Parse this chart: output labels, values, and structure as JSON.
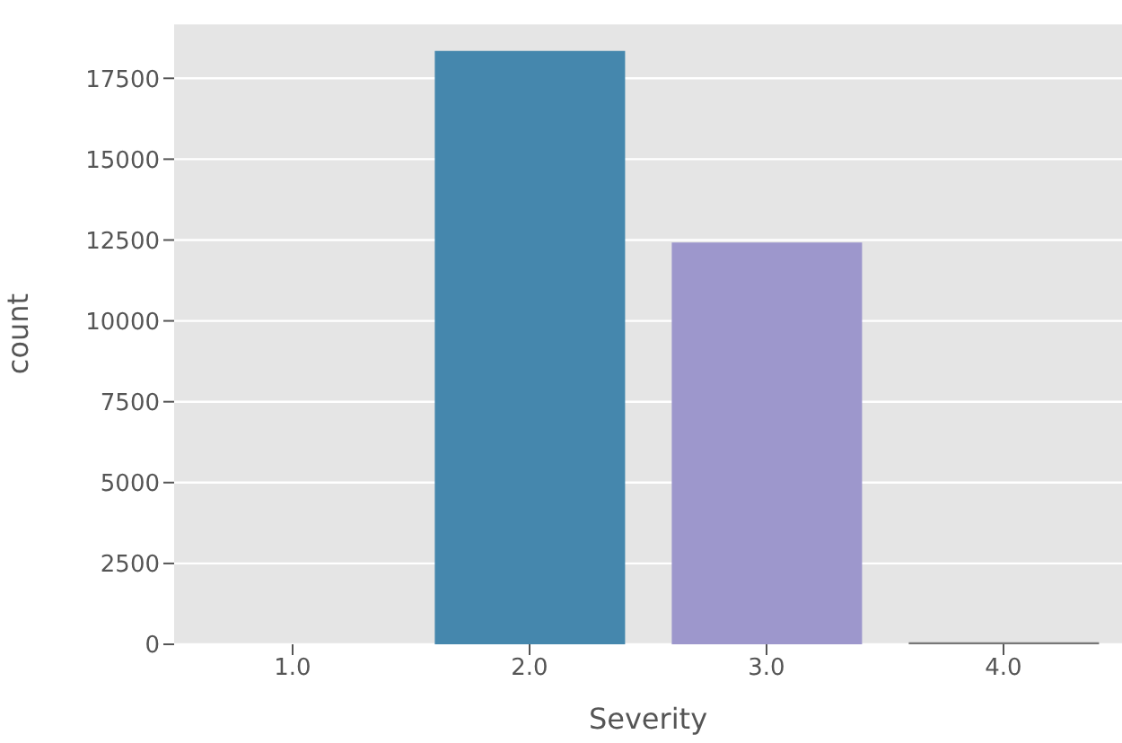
{
  "chart_data": {
    "type": "bar",
    "xlabel": "Severity",
    "ylabel": "count",
    "categories": [
      "1.0",
      "2.0",
      "3.0",
      "4.0"
    ],
    "values": [
      0,
      18350,
      12420,
      60
    ],
    "colors": [
      "#e24a33",
      "#4587ad",
      "#9d97cc",
      "#777777"
    ],
    "ylim": [
      0,
      19200
    ],
    "yticks": [
      0,
      2500,
      5000,
      7500,
      10000,
      12500,
      15000,
      17500
    ],
    "grid": "y"
  }
}
